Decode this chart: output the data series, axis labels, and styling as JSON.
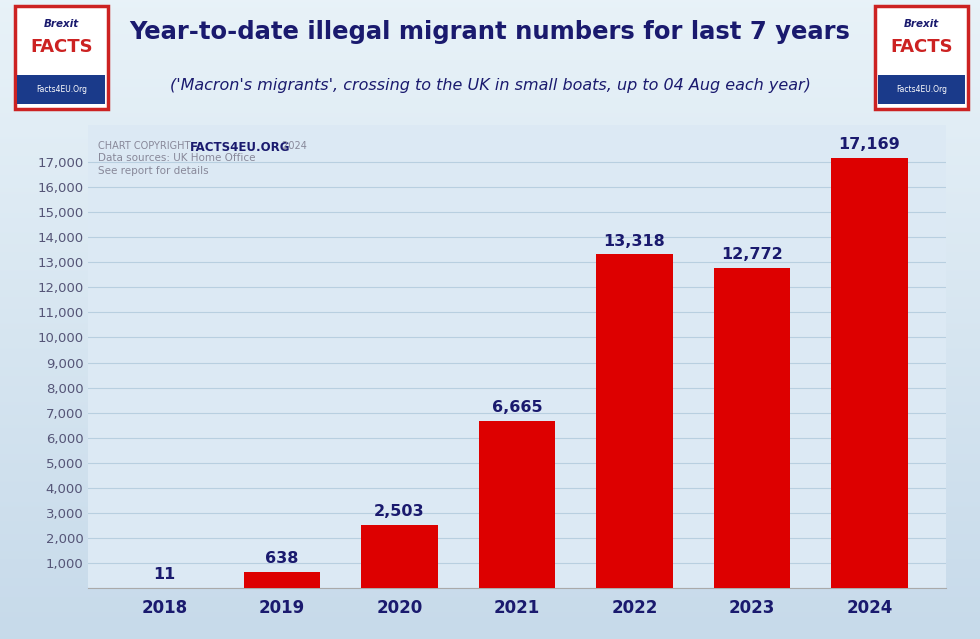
{
  "title_line1": "Year-to-date illegal migrant numbers for last 7 years",
  "title_line2": "('Macron's migrants', crossing to the UK in small boats, up to 04 Aug each year)",
  "years": [
    2018,
    2019,
    2020,
    2021,
    2022,
    2023,
    2024
  ],
  "values": [
    11,
    638,
    2503,
    6665,
    13318,
    12772,
    17169
  ],
  "bar_color": "#dd0000",
  "bar_color_2018": "#111144",
  "value_labels": [
    "11",
    "638",
    "2,503",
    "6,665",
    "13,318",
    "12,772",
    "17,169"
  ],
  "ylim": [
    0,
    18500
  ],
  "yticks": [
    0,
    1000,
    2000,
    3000,
    4000,
    5000,
    6000,
    7000,
    8000,
    9000,
    10000,
    11000,
    12000,
    13000,
    14000,
    15000,
    16000,
    17000
  ],
  "ytick_labels": [
    "",
    "1,000",
    "2,000",
    "3,000",
    "4,000",
    "5,000",
    "6,000",
    "7,000",
    "8,000",
    "9,000",
    "10,000",
    "11,000",
    "12,000",
    "13,000",
    "14,000",
    "15,000",
    "16,000",
    "17,000"
  ],
  "bg_top_color": "#c8daea",
  "bg_bottom_color": "#e8f2f8",
  "plot_bg_color": "#dce9f4",
  "grid_color": "#b8cfe0",
  "title_color": "#1a1a6e",
  "label_color": "#1a1a6e",
  "axis_label_color": "#1a1a6e",
  "axis_tick_color": "#555577",
  "copyright_light": "#888899",
  "copyright_bold_color": "#1a1a6e",
  "logo_border_color": "#cc2222",
  "logo_text_color": "#1a1a6e",
  "logo_facts_color": "#cc2222",
  "logo_bar_color": "#1a3a8a"
}
